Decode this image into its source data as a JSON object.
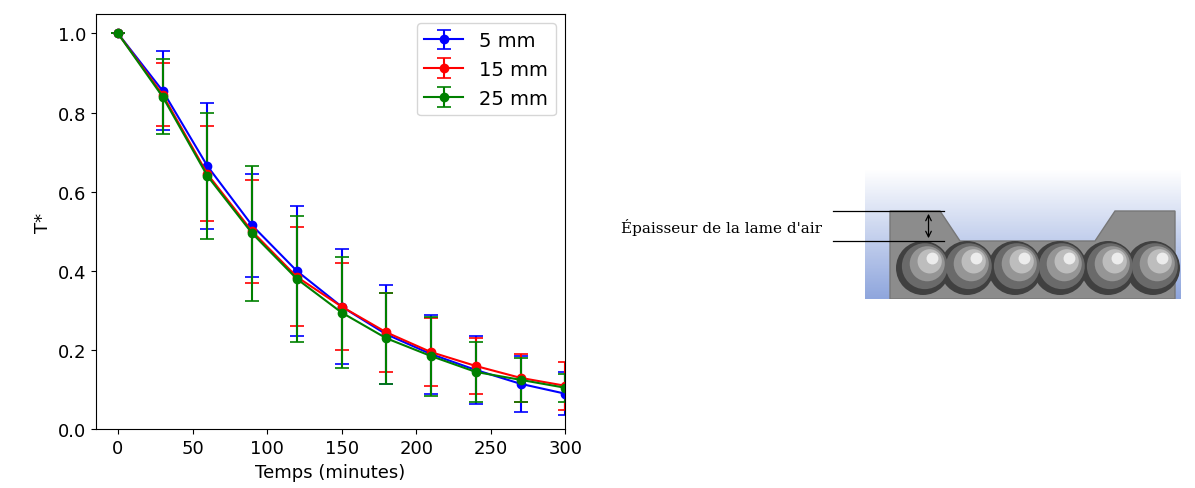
{
  "chart_data": {
    "type": "line",
    "x": [
      0,
      30,
      60,
      90,
      120,
      150,
      180,
      210,
      240,
      270,
      300
    ],
    "x_label": "Temps (minutes)",
    "y_label": "T*",
    "xlim": [
      -15,
      300
    ],
    "xticks": [
      0,
      50,
      100,
      150,
      200,
      250,
      300
    ],
    "ylim": [
      0,
      1.05
    ],
    "yticks": [
      {
        "value": 0,
        "label": "0.0"
      },
      {
        "value": 0.2,
        "label": "0.2"
      },
      {
        "value": 0.4,
        "label": "0.4"
      },
      {
        "value": 0.6,
        "label": "0.6"
      },
      {
        "value": 0.8,
        "label": "0.8"
      },
      {
        "value": 1.0,
        "label": "1.0"
      }
    ],
    "legend": "upper right",
    "marker": "circle",
    "series": [
      {
        "name": "5 mm",
        "color": "#0000ff",
        "values": [
          1.0,
          0.855,
          0.665,
          0.515,
          0.4,
          0.31,
          0.24,
          0.19,
          0.15,
          0.115,
          0.09
        ],
        "errors": [
          0,
          0.1,
          0.16,
          0.13,
          0.165,
          0.145,
          0.125,
          0.1,
          0.085,
          0.07,
          0.055
        ]
      },
      {
        "name": "15 mm",
        "color": "#ff0000",
        "values": [
          1.0,
          0.845,
          0.645,
          0.5,
          0.385,
          0.31,
          0.245,
          0.195,
          0.16,
          0.13,
          0.11
        ],
        "errors": [
          0,
          0.08,
          0.12,
          0.13,
          0.125,
          0.11,
          0.1,
          0.085,
          0.07,
          0.06,
          0.06
        ]
      },
      {
        "name": "25 mm",
        "color": "#008000",
        "values": [
          1.0,
          0.84,
          0.64,
          0.495,
          0.38,
          0.295,
          0.23,
          0.185,
          0.145,
          0.125,
          0.105
        ],
        "errors": [
          0,
          0.095,
          0.16,
          0.17,
          0.16,
          0.14,
          0.115,
          0.1,
          0.075,
          0.055,
          0.035
        ]
      }
    ]
  },
  "diagram": {
    "label": "Épaisseur de la lame d'air"
  }
}
